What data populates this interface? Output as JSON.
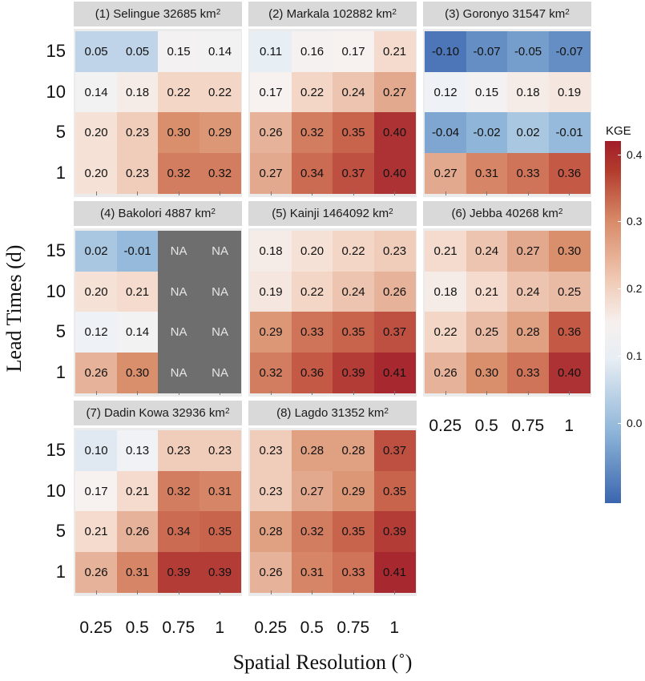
{
  "chart_data": {
    "type": "heatmap",
    "xlabel": "Spatial Resolution (˚)",
    "ylabel": "Lead Times (d)",
    "x_categories": [
      "0.25",
      "0.5",
      "0.75",
      "1"
    ],
    "y_categories": [
      "15",
      "10",
      "5",
      "1"
    ],
    "legend": {
      "title": "KGE",
      "min": -0.12,
      "max": 0.42,
      "ticks": [
        "0.0",
        "0.1",
        "0.2",
        "0.3",
        "0.4"
      ],
      "tick_values": [
        0.0,
        0.1,
        0.2,
        0.3,
        0.4
      ],
      "colors": {
        "low": "#3b66af",
        "mid": "#f7f4f2",
        "high": "#a11e2a",
        "na": "#6e6e6e"
      }
    },
    "panels": [
      {
        "prefix": "(1) Selingue 32685 km",
        "values": [
          [
            0.05,
            0.05,
            0.15,
            0.14
          ],
          [
            0.14,
            0.18,
            0.22,
            0.22
          ],
          [
            0.2,
            0.23,
            0.3,
            0.29
          ],
          [
            0.2,
            0.23,
            0.32,
            0.32
          ]
        ],
        "labels": [
          [
            "0.05",
            "0.05",
            "0.15",
            "0.14"
          ],
          [
            "0.14",
            "0.18",
            "0.22",
            "0.22"
          ],
          [
            "0.20",
            "0.23",
            "0.30",
            "0.29"
          ],
          [
            "0.20",
            "0.23",
            "0.32",
            "0.32"
          ]
        ]
      },
      {
        "prefix": "(2) Markala 102882 km",
        "values": [
          [
            0.11,
            0.16,
            0.17,
            0.21
          ],
          [
            0.17,
            0.22,
            0.24,
            0.27
          ],
          [
            0.26,
            0.32,
            0.35,
            0.4
          ],
          [
            0.27,
            0.34,
            0.37,
            0.4
          ]
        ],
        "labels": [
          [
            "0.11",
            "0.16",
            "0.17",
            "0.21"
          ],
          [
            "0.17",
            "0.22",
            "0.24",
            "0.27"
          ],
          [
            "0.26",
            "0.32",
            "0.35",
            "0.40"
          ],
          [
            "0.27",
            "0.34",
            "0.37",
            "0.40"
          ]
        ]
      },
      {
        "prefix": "(3) Goronyo 31547 km",
        "values": [
          [
            -0.1,
            -0.07,
            -0.05,
            -0.07
          ],
          [
            0.12,
            0.15,
            0.18,
            0.19
          ],
          [
            -0.04,
            -0.02,
            0.02,
            -0.01
          ],
          [
            0.27,
            0.31,
            0.33,
            0.36
          ]
        ],
        "labels": [
          [
            "-0.10",
            "-0.07",
            "-0.05",
            "-0.07"
          ],
          [
            "0.12",
            "0.15",
            "0.18",
            "0.19"
          ],
          [
            "-0.04",
            "-0.02",
            "0.02",
            "-0.01"
          ],
          [
            "0.27",
            "0.31",
            "0.33",
            "0.36"
          ]
        ]
      },
      {
        "prefix": "(4) Bakolori 4887 km",
        "values": [
          [
            0.02,
            -0.01,
            null,
            null
          ],
          [
            0.2,
            0.21,
            null,
            null
          ],
          [
            0.12,
            0.14,
            null,
            null
          ],
          [
            0.26,
            0.3,
            null,
            null
          ]
        ],
        "labels": [
          [
            "0.02",
            "-0.01",
            "NA",
            "NA"
          ],
          [
            "0.20",
            "0.21",
            "NA",
            "NA"
          ],
          [
            "0.12",
            "0.14",
            "NA",
            "NA"
          ],
          [
            "0.26",
            "0.30",
            "NA",
            "NA"
          ]
        ]
      },
      {
        "prefix": "(5) Kainji 1464092 km",
        "values": [
          [
            0.18,
            0.2,
            0.22,
            0.23
          ],
          [
            0.19,
            0.22,
            0.24,
            0.26
          ],
          [
            0.29,
            0.33,
            0.35,
            0.37
          ],
          [
            0.32,
            0.36,
            0.39,
            0.41
          ]
        ],
        "labels": [
          [
            "0.18",
            "0.20",
            "0.22",
            "0.23"
          ],
          [
            "0.19",
            "0.22",
            "0.24",
            "0.26"
          ],
          [
            "0.29",
            "0.33",
            "0.35",
            "0.37"
          ],
          [
            "0.32",
            "0.36",
            "0.39",
            "0.41"
          ]
        ]
      },
      {
        "prefix": "(6) Jebba 40268 km",
        "values": [
          [
            0.21,
            0.24,
            0.27,
            0.3
          ],
          [
            0.18,
            0.21,
            0.24,
            0.25
          ],
          [
            0.22,
            0.25,
            0.28,
            0.36
          ],
          [
            0.26,
            0.3,
            0.33,
            0.4
          ]
        ],
        "labels": [
          [
            "0.21",
            "0.24",
            "0.27",
            "0.30"
          ],
          [
            "0.18",
            "0.21",
            "0.24",
            "0.25"
          ],
          [
            "0.22",
            "0.25",
            "0.28",
            "0.36"
          ],
          [
            "0.26",
            "0.30",
            "0.33",
            "0.40"
          ]
        ]
      },
      {
        "prefix": "(7) Dadin Kowa 32936 km",
        "values": [
          [
            0.1,
            0.13,
            0.23,
            0.23
          ],
          [
            0.17,
            0.21,
            0.32,
            0.31
          ],
          [
            0.21,
            0.26,
            0.34,
            0.35
          ],
          [
            0.26,
            0.31,
            0.39,
            0.39
          ]
        ],
        "labels": [
          [
            "0.10",
            "0.13",
            "0.23",
            "0.23"
          ],
          [
            "0.17",
            "0.21",
            "0.32",
            "0.31"
          ],
          [
            "0.21",
            "0.26",
            "0.34",
            "0.35"
          ],
          [
            "0.26",
            "0.31",
            "0.39",
            "0.39"
          ]
        ]
      },
      {
        "prefix": "(8) Lagdo 31352 km",
        "values": [
          [
            0.23,
            0.28,
            0.28,
            0.37
          ],
          [
            0.23,
            0.27,
            0.29,
            0.35
          ],
          [
            0.28,
            0.32,
            0.35,
            0.39
          ],
          [
            0.26,
            0.31,
            0.33,
            0.41
          ]
        ],
        "labels": [
          [
            "0.23",
            "0.28",
            "0.28",
            "0.37"
          ],
          [
            "0.23",
            "0.27",
            "0.29",
            "0.35"
          ],
          [
            "0.28",
            "0.32",
            "0.35",
            "0.39"
          ],
          [
            "0.26",
            "0.31",
            "0.33",
            "0.41"
          ]
        ]
      }
    ],
    "unit_superscript": "2"
  }
}
